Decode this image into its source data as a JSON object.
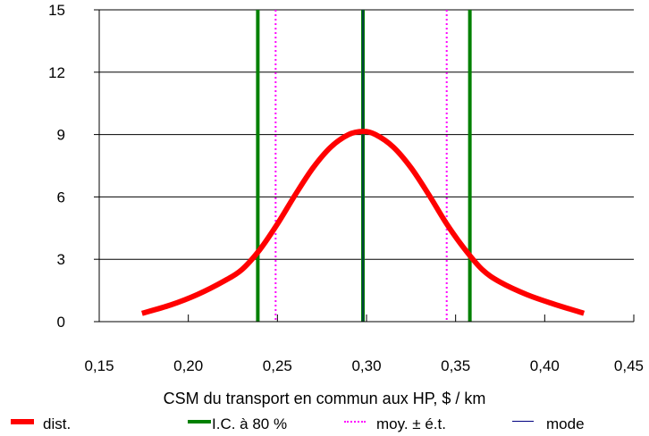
{
  "chart_data": {
    "type": "line",
    "title": "",
    "xlabel": "CSM du transport en commun aux HP, $ / km",
    "ylabel": "",
    "xlim": [
      0.15,
      0.45
    ],
    "ylim": [
      0,
      15
    ],
    "x_ticks": [
      "0,15",
      "0,20",
      "0,25",
      "0,30",
      "0,35",
      "0,40",
      "0,45"
    ],
    "y_ticks": [
      "0",
      "3",
      "6",
      "9",
      "12",
      "15"
    ],
    "x_tick_values": [
      0.15,
      0.2,
      0.25,
      0.3,
      0.35,
      0.4,
      0.45
    ],
    "y_tick_values": [
      0,
      3,
      6,
      9,
      12,
      15
    ],
    "grid": "horizontal",
    "legend_position": "bottom",
    "series": [
      {
        "name": "dist.",
        "style": "line",
        "color": "#ff0000",
        "points": [
          [
            0.174,
            0.4
          ],
          [
            0.19,
            0.8
          ],
          [
            0.205,
            1.3
          ],
          [
            0.22,
            1.95
          ],
          [
            0.23,
            2.5
          ],
          [
            0.24,
            3.45
          ],
          [
            0.25,
            4.7
          ],
          [
            0.26,
            6.1
          ],
          [
            0.27,
            7.4
          ],
          [
            0.28,
            8.4
          ],
          [
            0.29,
            9.0
          ],
          [
            0.298,
            9.15
          ],
          [
            0.305,
            9.0
          ],
          [
            0.315,
            8.4
          ],
          [
            0.325,
            7.4
          ],
          [
            0.335,
            6.1
          ],
          [
            0.345,
            4.7
          ],
          [
            0.355,
            3.5
          ],
          [
            0.365,
            2.5
          ],
          [
            0.375,
            1.9
          ],
          [
            0.39,
            1.3
          ],
          [
            0.405,
            0.85
          ],
          [
            0.422,
            0.4
          ]
        ]
      },
      {
        "name": "I.C. à 80 %",
        "style": "vline-solid",
        "color": "#008000",
        "values": [
          0.239,
          0.298,
          0.358
        ]
      },
      {
        "name": "moy. ± é.t.",
        "style": "vline-dotted",
        "color": "#ff00ff",
        "values": [
          0.249,
          0.345
        ]
      },
      {
        "name": "mode",
        "style": "vline-thin",
        "color": "#000080",
        "values": [
          0.298
        ]
      }
    ]
  }
}
